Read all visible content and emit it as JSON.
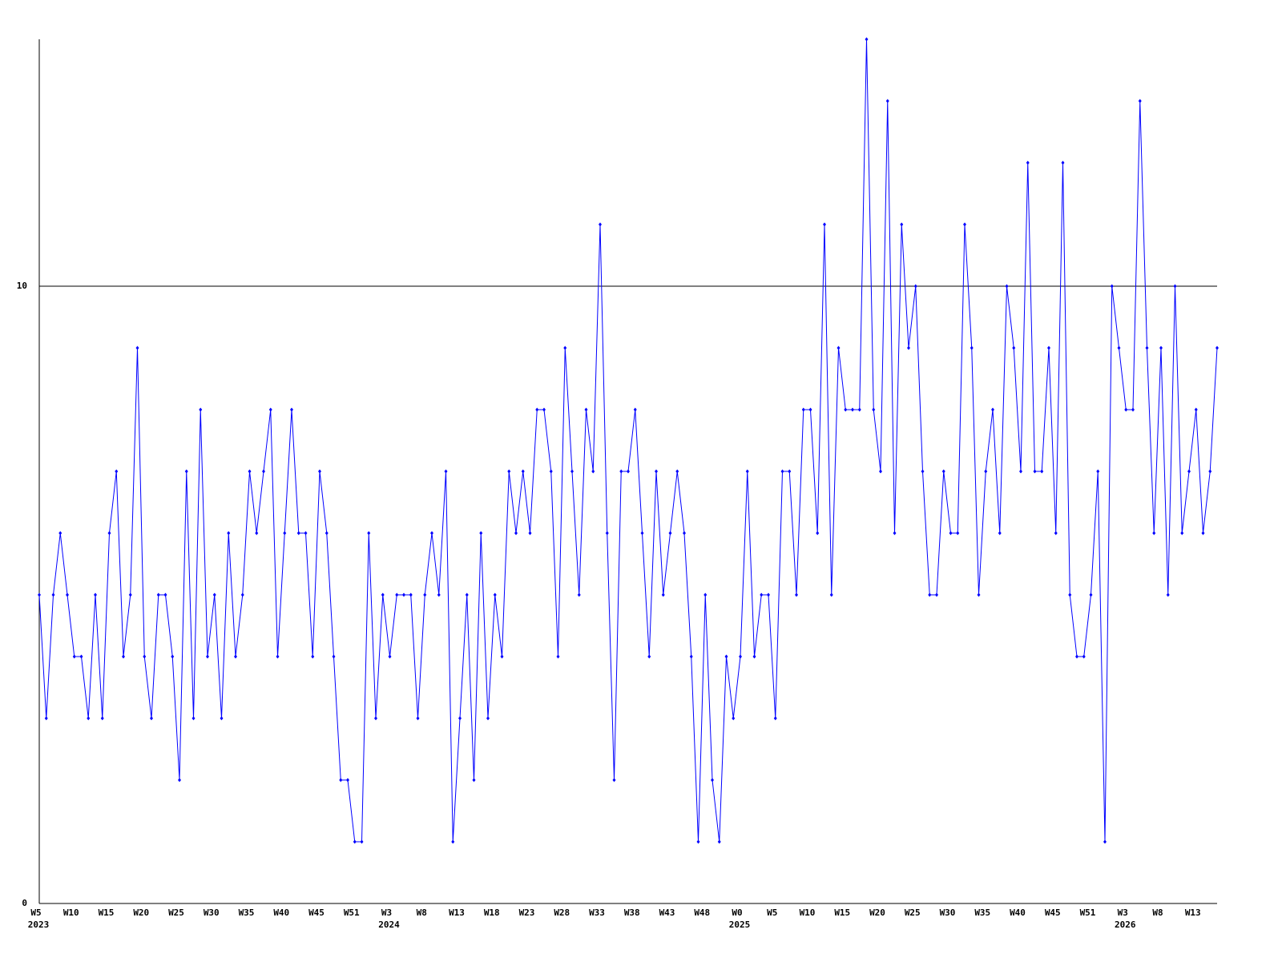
{
  "chart_data": {
    "type": "line",
    "categories": [
      "W5",
      null,
      null,
      null,
      null,
      "W10",
      null,
      null,
      null,
      null,
      "W15",
      null,
      null,
      null,
      null,
      "W20",
      null,
      null,
      null,
      null,
      "W25",
      null,
      null,
      null,
      null,
      "W30",
      null,
      null,
      null,
      null,
      "W35",
      null,
      null,
      null,
      null,
      "W40",
      null,
      null,
      null,
      null,
      "W45",
      null,
      null,
      null,
      null,
      "W51",
      null,
      null,
      null,
      null,
      "W3",
      null,
      null,
      null,
      null,
      "W8",
      null,
      null,
      null,
      null,
      "W13",
      null,
      null,
      null,
      null,
      "W18",
      null,
      null,
      null,
      null,
      "W23",
      null,
      null,
      null,
      null,
      "W28",
      null,
      null,
      null,
      null,
      "W33",
      null,
      null,
      null,
      null,
      "W38",
      null,
      null,
      null,
      null,
      "W43",
      null,
      null,
      null,
      null,
      "W48",
      null,
      null,
      null,
      null,
      "W0",
      null,
      null,
      null,
      null,
      "W5",
      null,
      null,
      null,
      null,
      "W10",
      null,
      null,
      null,
      null,
      "W15",
      null,
      null,
      null,
      null,
      "W20",
      null,
      null,
      null,
      null,
      "W25",
      null,
      null,
      null,
      null,
      "W30",
      null,
      null,
      null,
      null,
      "W35",
      null,
      null,
      null,
      null,
      "W40",
      null,
      null,
      null,
      null,
      "W45",
      null,
      null,
      null,
      null,
      "W51",
      null,
      null,
      null,
      null,
      "W3",
      null,
      null,
      null,
      null,
      "W8",
      null,
      null,
      null,
      null,
      "W13",
      null,
      null,
      null
    ],
    "years": [
      "2023",
      null,
      null,
      null,
      null,
      null,
      null,
      null,
      null,
      null,
      null,
      null,
      null,
      null,
      null,
      null,
      null,
      null,
      null,
      null,
      null,
      null,
      null,
      null,
      null,
      null,
      null,
      null,
      null,
      null,
      null,
      null,
      null,
      null,
      null,
      null,
      null,
      null,
      null,
      null,
      null,
      null,
      null,
      null,
      null,
      null,
      null,
      null,
      null,
      null,
      "2024",
      null,
      null,
      null,
      null,
      null,
      null,
      null,
      null,
      null,
      null,
      null,
      null,
      null,
      null,
      null,
      null,
      null,
      null,
      null,
      null,
      null,
      null,
      null,
      null,
      null,
      null,
      null,
      null,
      null,
      null,
      null,
      null,
      null,
      null,
      null,
      null,
      null,
      null,
      null,
      null,
      null,
      null,
      null,
      null,
      null,
      null,
      null,
      null,
      null,
      "2025",
      null,
      null,
      null,
      null,
      null,
      null,
      null,
      null,
      null,
      null,
      null,
      null,
      null,
      null,
      null,
      null,
      null,
      null,
      null,
      null,
      null,
      null,
      null,
      null,
      null,
      null,
      null,
      null,
      null,
      null,
      null,
      null,
      null,
      null,
      null,
      null,
      null,
      null,
      null,
      null,
      null,
      null,
      null,
      null,
      null,
      null,
      null,
      null,
      null,
      null,
      null,
      null,
      null,
      null,
      "2026",
      null,
      null,
      null,
      null,
      null,
      null,
      null,
      null,
      null,
      null,
      null,
      null,
      null
    ],
    "series": [
      {
        "color": "#0000ff",
        "values": [
          5,
          3,
          5,
          6,
          5,
          4,
          4,
          3,
          5,
          3,
          6,
          7,
          4,
          5,
          9,
          4,
          3,
          5,
          5,
          4,
          2,
          7,
          3,
          8,
          4,
          5,
          3,
          6,
          4,
          5,
          7,
          6,
          7,
          8,
          4,
          6,
          8,
          6,
          6,
          4,
          7,
          6,
          4,
          2,
          2,
          1,
          1,
          6,
          3,
          5,
          4,
          5,
          5,
          5,
          3,
          5,
          6,
          5,
          7,
          1,
          3,
          5,
          2,
          6,
          3,
          5,
          4,
          7,
          6,
          7,
          6,
          8,
          8,
          7,
          4,
          9,
          7,
          5,
          8,
          7,
          11,
          6,
          2,
          7,
          7,
          8,
          6,
          4,
          7,
          5,
          6,
          7,
          6,
          4,
          1,
          5,
          2,
          1,
          4,
          3,
          4,
          7,
          4,
          5,
          5,
          3,
          7,
          7,
          5,
          8,
          8,
          6,
          11,
          5,
          9,
          8,
          8,
          8,
          14,
          8,
          7,
          13,
          6,
          11,
          9,
          10,
          7,
          5,
          5,
          7,
          6,
          6,
          11,
          9,
          5,
          7,
          8,
          6,
          10,
          9,
          7,
          12,
          7,
          7,
          9,
          6,
          12,
          5,
          4,
          4,
          5,
          7,
          1,
          10,
          9,
          8,
          8,
          13,
          9,
          6,
          9,
          5,
          10,
          6,
          7,
          8,
          6,
          7,
          9
        ]
      }
    ],
    "ylim": [
      0,
      14
    ],
    "yticks": [
      0,
      10
    ],
    "grid": true
  }
}
